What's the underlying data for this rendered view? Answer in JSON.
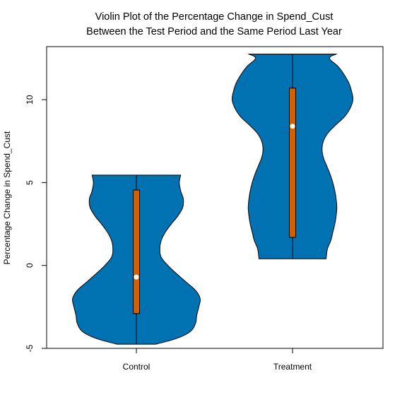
{
  "chart_data": {
    "type": "violin",
    "title": [
      "Violin Plot of the Percentage Change in Spend_Cust",
      "Between the Test Period and the Same Period Last Year"
    ],
    "xlabel": "",
    "ylabel": "Percentage Change in Spend_Cust",
    "categories": [
      "Control",
      "Treatment"
    ],
    "ylim": [
      -5.0,
      13.2
    ],
    "yticks": [
      -5,
      0,
      5,
      10
    ],
    "ytick_labels": [
      "-5",
      "0",
      "5",
      "10"
    ],
    "series": [
      {
        "category": "Control",
        "min": -4.75,
        "q1": -2.9,
        "median": -0.7,
        "q3": 4.55,
        "max": 5.45,
        "density": [
          [
            -4.75,
            0.29
          ],
          [
            -4.4,
            0.6
          ],
          [
            -4.0,
            0.8
          ],
          [
            -3.5,
            0.88
          ],
          [
            -3.0,
            0.9
          ],
          [
            -2.5,
            0.93
          ],
          [
            -2.0,
            0.95
          ],
          [
            -1.5,
            0.88
          ],
          [
            -1.0,
            0.74
          ],
          [
            -0.5,
            0.6
          ],
          [
            0.0,
            0.47
          ],
          [
            0.5,
            0.37
          ],
          [
            1.0,
            0.35
          ],
          [
            1.5,
            0.37
          ],
          [
            2.0,
            0.43
          ],
          [
            2.5,
            0.52
          ],
          [
            3.0,
            0.62
          ],
          [
            3.5,
            0.69
          ],
          [
            4.0,
            0.7
          ],
          [
            4.5,
            0.66
          ],
          [
            5.0,
            0.64
          ],
          [
            5.45,
            0.66
          ]
        ]
      },
      {
        "category": "Treatment",
        "min": 0.4,
        "q1": 1.7,
        "median": 8.4,
        "q3": 10.7,
        "max": 12.75,
        "density": [
          [
            0.4,
            0.5
          ],
          [
            1.0,
            0.52
          ],
          [
            1.5,
            0.57
          ],
          [
            2.0,
            0.6
          ],
          [
            2.5,
            0.63
          ],
          [
            3.0,
            0.65
          ],
          [
            3.5,
            0.66
          ],
          [
            4.0,
            0.65
          ],
          [
            4.5,
            0.63
          ],
          [
            5.0,
            0.6
          ],
          [
            5.5,
            0.56
          ],
          [
            6.0,
            0.51
          ],
          [
            6.5,
            0.46
          ],
          [
            7.0,
            0.44
          ],
          [
            7.5,
            0.46
          ],
          [
            8.0,
            0.53
          ],
          [
            8.5,
            0.65
          ],
          [
            9.0,
            0.78
          ],
          [
            9.5,
            0.86
          ],
          [
            10.0,
            0.9
          ],
          [
            10.5,
            0.88
          ],
          [
            11.0,
            0.84
          ],
          [
            11.5,
            0.77
          ],
          [
            12.0,
            0.68
          ],
          [
            12.5,
            0.55
          ],
          [
            12.75,
            0.65
          ]
        ]
      }
    ],
    "colors": {
      "violin": "#0072B2",
      "box": "#D55E00",
      "median": "#FFFFFF",
      "outline": "#000000"
    }
  }
}
